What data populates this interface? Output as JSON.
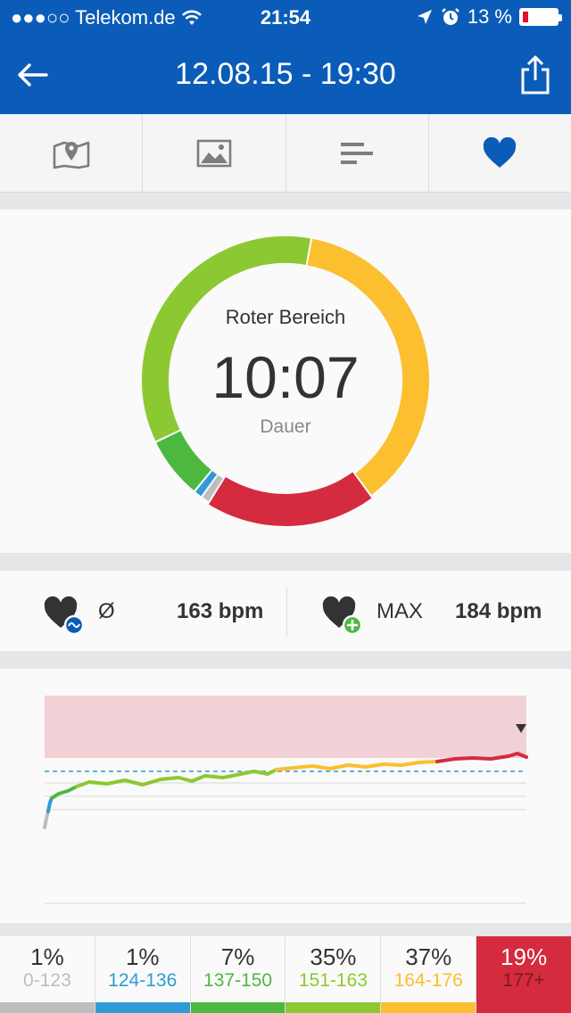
{
  "status_bar": {
    "carrier": "●●●○○ Telekom.de",
    "time": "21:54",
    "battery": "13 %"
  },
  "nav": {
    "title": "12.08.15 - 19:30"
  },
  "tabs": [
    {
      "icon": "map-icon"
    },
    {
      "icon": "photo-icon"
    },
    {
      "icon": "splits-icon"
    },
    {
      "icon": "heart-icon",
      "active": true
    }
  ],
  "ring": {
    "label": "Roter Bereich",
    "value": "10:07",
    "sublabel": "Dauer"
  },
  "stats": {
    "avg_symbol": "Ø",
    "avg_value": "163 bpm",
    "max_label": "MAX",
    "max_value": "184 bpm"
  },
  "zones": [
    {
      "pct": "1%",
      "range": "0-123",
      "color": "#bdbdbd"
    },
    {
      "pct": "1%",
      "range": "124-136",
      "color": "#2f9bd6"
    },
    {
      "pct": "7%",
      "range": "137-150",
      "color": "#4cb840"
    },
    {
      "pct": "35%",
      "range": "151-163",
      "color": "#8cc832"
    },
    {
      "pct": "37%",
      "range": "164-176",
      "color": "#fbbf2f"
    },
    {
      "pct": "19%",
      "range": "177+",
      "color": "#d42b3e"
    }
  ],
  "colors": {
    "brand": "#0b5cb8",
    "zone_gray": "#bdbdbd",
    "zone_blue": "#2f9bd6",
    "zone_green": "#4cb840",
    "zone_lightgreen": "#8cc832",
    "zone_yellow": "#fbbf2f",
    "zone_red": "#d42b3e"
  }
}
